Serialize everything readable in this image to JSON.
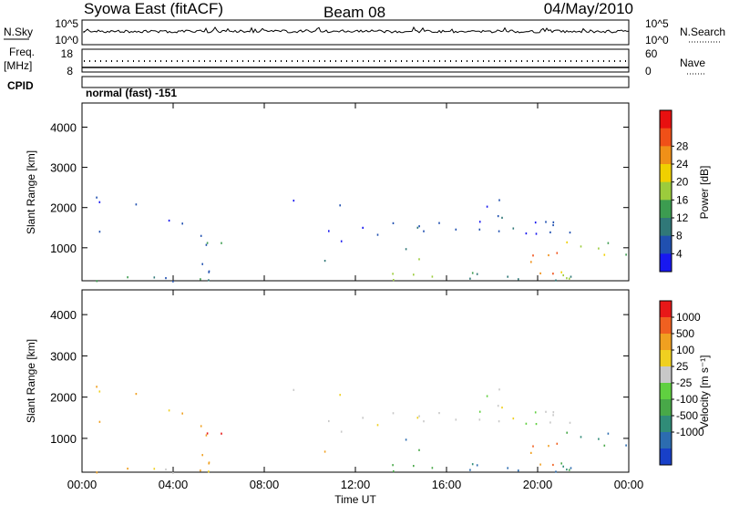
{
  "header": {
    "station": "Syowa East (fitACF)",
    "beam": "Beam 08",
    "date": "04/May/2010"
  },
  "status_panels": {
    "nsky": {
      "label": "N.Sky",
      "ticks": [
        "10^5",
        "10^0"
      ]
    },
    "nsearch": {
      "label": "N.Search",
      "ticks": [
        "10^5",
        "10^0"
      ]
    },
    "freq": {
      "label_line1": "Freq.",
      "label_line2": "[MHz]",
      "ticks": [
        "18",
        "8"
      ]
    },
    "nave": {
      "label": "Nave",
      "ticks": [
        "60",
        "0"
      ]
    },
    "cpid": {
      "label": "CPID",
      "value": "normal (fast) -151"
    }
  },
  "chart_data": [
    {
      "type": "heatmap",
      "name": "power",
      "ylabel": "Slant Range [km]",
      "xlabel": "",
      "yticks": [
        "1000",
        "2000",
        "3000",
        "4000"
      ],
      "ytick_values": [
        1000,
        2000,
        3000,
        4000
      ],
      "ylim": [
        180,
        4600
      ],
      "xlim_hours": [
        0,
        24
      ],
      "colorbar": {
        "label": "Power [dB]",
        "labels": [
          "4",
          "8",
          "12",
          "16",
          "20",
          "24",
          "28"
        ],
        "colors": [
          "#1818f0",
          "#2050b0",
          "#307878",
          "#3c9c50",
          "#9ccc3c",
          "#f0d000",
          "#f09018",
          "#f05018",
          "#e81010"
        ]
      },
      "clusters": [
        {
          "t": [
            0.3,
            6.3
          ],
          "r": [
            180,
            320
          ],
          "level": 2,
          "density": 0.55
        },
        {
          "t": [
            5.2,
            6.3
          ],
          "r": [
            400,
            1300
          ],
          "level": 2,
          "density": 0.4
        },
        {
          "t": [
            0.5,
            6.3
          ],
          "r": [
            800,
            2300
          ],
          "level": 1,
          "density": 0.05
        },
        {
          "t": [
            6.5,
            13.0
          ],
          "r": [
            700,
            2300
          ],
          "level": 1,
          "density": 0.04
        },
        {
          "t": [
            13.0,
            21.5
          ],
          "r": [
            1350,
            1800
          ],
          "level": 1,
          "density": 0.28
        },
        {
          "t": [
            13.0,
            19.5
          ],
          "r": [
            1500,
            2300
          ],
          "level": 1,
          "density": 0.06
        },
        {
          "t": [
            13.0,
            24.0
          ],
          "r": [
            180,
            400
          ],
          "level": 3,
          "density": 0.3
        },
        {
          "t": [
            14.0,
            15.5
          ],
          "r": [
            600,
            1000
          ],
          "level": 3,
          "density": 0.25
        },
        {
          "t": [
            19.5,
            21.0
          ],
          "r": [
            300,
            900
          ],
          "level": 6,
          "density": 0.45
        },
        {
          "t": [
            21.0,
            24.0
          ],
          "r": [
            180,
            1200
          ],
          "level": 4,
          "density": 0.18
        }
      ]
    },
    {
      "type": "heatmap",
      "name": "velocity",
      "ylabel": "Slant Range [km]",
      "xlabel": "Time UT",
      "yticks": [
        "1000",
        "2000",
        "3000",
        "4000"
      ],
      "ytick_values": [
        1000,
        2000,
        3000,
        4000
      ],
      "ylim": [
        180,
        4600
      ],
      "xlim_hours": [
        0,
        24
      ],
      "xticks": [
        "00:00",
        "04:00",
        "08:00",
        "12:00",
        "16:00",
        "20:00",
        "00:00"
      ],
      "colorbar": {
        "label": "Velocity [m s⁻¹]",
        "labels": [
          "1000",
          "500",
          "100",
          "25",
          "-25",
          "-100",
          "-500",
          "-1000"
        ],
        "colors": [
          "#1840c8",
          "#2c6cb0",
          "#308c78",
          "#48a848",
          "#60d040",
          "#c8c8c8",
          "#f0d020",
          "#f0a020",
          "#f06020",
          "#e81818"
        ]
      },
      "clusters": [
        {
          "t": [
            0.3,
            6.3
          ],
          "r": [
            180,
            320
          ],
          "level": 6,
          "density": 0.5
        },
        {
          "t": [
            5.2,
            6.3
          ],
          "r": [
            400,
            1300
          ],
          "level": 8,
          "density": 0.4
        },
        {
          "t": [
            0.5,
            6.3
          ],
          "r": [
            800,
            2300
          ],
          "level": 7,
          "density": 0.05
        },
        {
          "t": [
            6.5,
            13.0
          ],
          "r": [
            700,
            2300
          ],
          "level": 6,
          "density": 0.04
        },
        {
          "t": [
            13.0,
            21.5
          ],
          "r": [
            1350,
            1800
          ],
          "level": 5,
          "density": 0.28
        },
        {
          "t": [
            13.0,
            19.5
          ],
          "r": [
            1500,
            2300
          ],
          "level": 5,
          "density": 0.06
        },
        {
          "t": [
            13.0,
            24.0
          ],
          "r": [
            180,
            400
          ],
          "level": 2,
          "density": 0.3
        },
        {
          "t": [
            14.0,
            15.5
          ],
          "r": [
            600,
            1000
          ],
          "level": 2,
          "density": 0.25
        },
        {
          "t": [
            19.5,
            21.0
          ],
          "r": [
            300,
            900
          ],
          "level": 7,
          "density": 0.45
        },
        {
          "t": [
            21.0,
            24.0
          ],
          "r": [
            180,
            1200
          ],
          "level": 2,
          "density": 0.18
        }
      ]
    }
  ]
}
